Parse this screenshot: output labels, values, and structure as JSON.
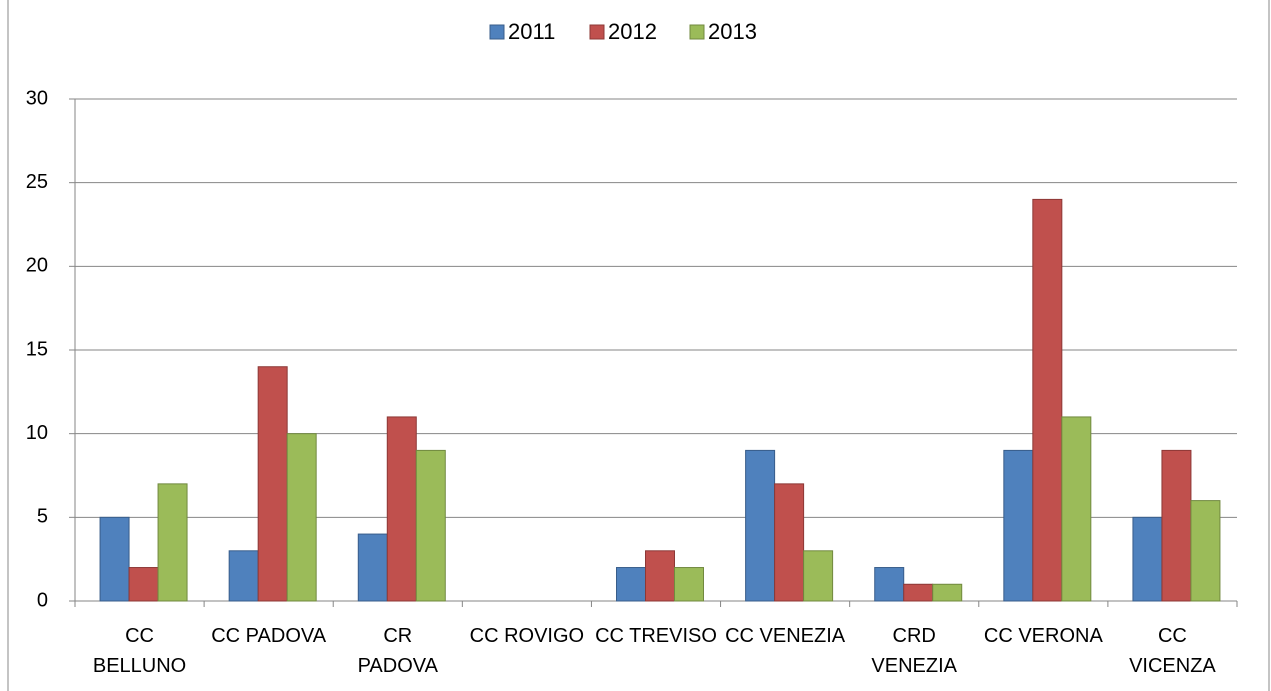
{
  "chart_data": {
    "type": "bar",
    "categories": [
      "CC\nBELLUNO",
      "CC PADOVA",
      "CR\nPADOVA",
      "CC ROVIGO",
      "CC TREVISO",
      "CC VENEZIA",
      "CRD\nVENEZIA",
      "CC VERONA",
      "CC\nVICENZA"
    ],
    "series": [
      {
        "name": "2011",
        "color": "#4f81bd",
        "values": [
          5,
          3,
          4,
          0,
          2,
          9,
          2,
          9,
          5
        ]
      },
      {
        "name": "2012",
        "color": "#c0504d",
        "values": [
          2,
          14,
          11,
          0,
          3,
          7,
          1,
          24,
          9
        ]
      },
      {
        "name": "2013",
        "color": "#9bbb59",
        "values": [
          7,
          10,
          9,
          0,
          2,
          3,
          1,
          11,
          6
        ]
      }
    ],
    "ylim": [
      0,
      30
    ],
    "yticks": [
      0,
      5,
      10,
      15,
      20,
      25,
      30
    ],
    "grid": true,
    "legend": "top"
  }
}
